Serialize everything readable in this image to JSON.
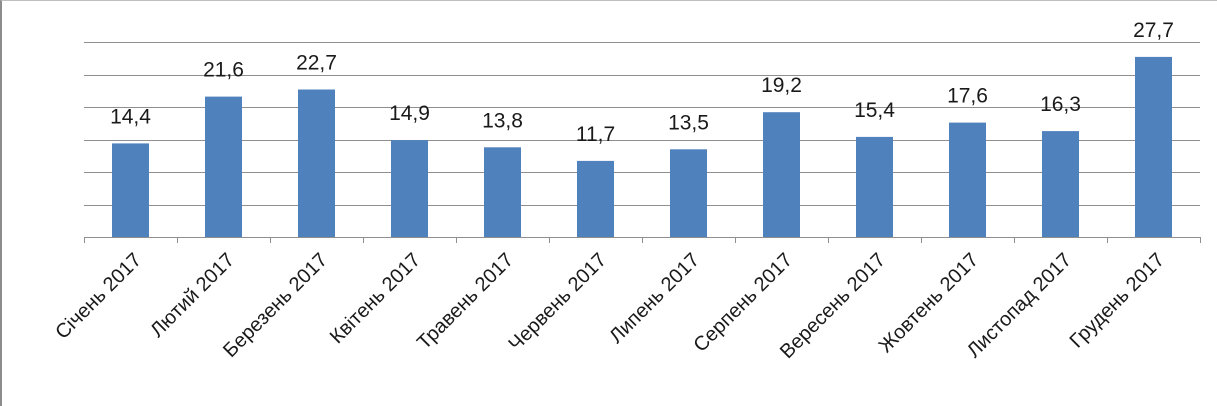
{
  "chart_data": {
    "type": "bar",
    "categories": [
      "Січень 2017",
      "Лютий 2017",
      "Березень 2017",
      "Квітень 2017",
      "Травень 2017",
      "Червень 2017",
      "Липень 2017",
      "Серпень 2017",
      "Вересень 2017",
      "Жовтень 2017",
      "Листопад 2017",
      "Грудень 2017"
    ],
    "values": [
      14.4,
      21.6,
      22.7,
      14.9,
      13.8,
      11.7,
      13.5,
      19.2,
      15.4,
      17.6,
      16.3,
      27.7
    ],
    "data_labels": [
      "14,4",
      "21,6",
      "22,7",
      "14,9",
      "13,8",
      "11,7",
      "13,5",
      "19,2",
      "15,4",
      "17,6",
      "16,3",
      "27,7"
    ],
    "ylim": [
      0,
      30
    ],
    "y_gridlines": [
      5,
      10,
      15,
      20,
      25,
      30
    ],
    "y_tick_labels_shown": false,
    "grid": true,
    "legend": "none",
    "title": "",
    "xlabel": "",
    "ylabel": "",
    "colors": {
      "bar": "#4f81bd",
      "grid": "#8f8f8f"
    }
  }
}
